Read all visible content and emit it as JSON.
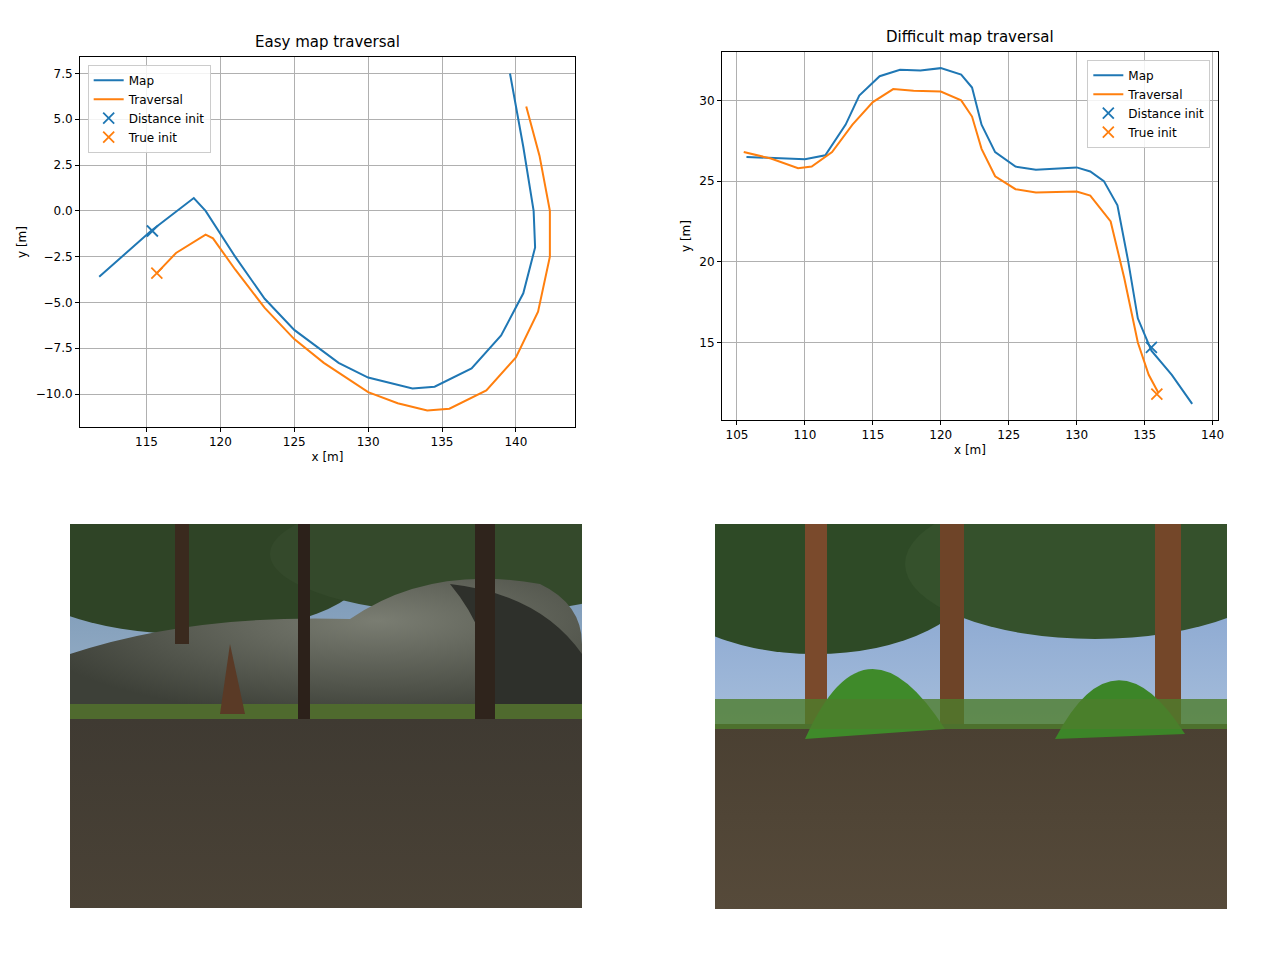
{
  "chart_data": [
    {
      "type": "line",
      "title": "Easy map traversal",
      "x_label": "x [m]",
      "y_label": "y [m]",
      "series": [
        {
          "name": "Map",
          "color": "#1f77b4",
          "line_style": "solid",
          "x": [
            111.8,
            115.3,
            118.2,
            119.0,
            121.0,
            123.0,
            125.0,
            128.0,
            130.0,
            133.0,
            134.5,
            137.0,
            139.0,
            140.5,
            141.3,
            141.2,
            140.5,
            139.6
          ],
          "values": [
            -3.6,
            -1.1,
            0.7,
            0.0,
            -2.5,
            -4.8,
            -6.5,
            -8.3,
            -9.1,
            -9.7,
            -9.6,
            -8.6,
            -6.8,
            -4.5,
            -2.0,
            0.0,
            3.5,
            7.5
          ]
        },
        {
          "name": "Traversal",
          "color": "#ff7f0e",
          "line_style": "solid",
          "x": [
            115.7,
            117.0,
            119.0,
            119.5,
            121.0,
            123.0,
            125.0,
            127.0,
            130.0,
            132.0,
            134.0,
            135.5,
            138.0,
            140.0,
            141.5,
            142.3,
            142.3,
            141.6,
            140.7
          ],
          "values": [
            -3.4,
            -2.3,
            -1.3,
            -1.5,
            -3.2,
            -5.3,
            -7.0,
            -8.3,
            -9.9,
            -10.5,
            -10.9,
            -10.8,
            -9.8,
            -8.0,
            -5.5,
            -2.5,
            0.0,
            3.0,
            5.7
          ]
        },
        {
          "name": "Distance init",
          "color": "#1f77b4",
          "type": "scatter",
          "marker": "x",
          "x": [
            115.4
          ],
          "values": [
            -1.1
          ]
        },
        {
          "name": "True init",
          "color": "#ff7f0e",
          "type": "scatter",
          "marker": "x",
          "x": [
            115.7
          ],
          "values": [
            -3.4
          ]
        }
      ],
      "xlim": [
        110.5,
        144.0
      ],
      "ylim": [
        -11.8,
        8.4
      ],
      "xticks": [
        115,
        120,
        125,
        130,
        135,
        140
      ],
      "yticks": [
        {
          "value": -10,
          "label": "−10.0"
        },
        {
          "value": -7.5,
          "label": "−7.5"
        },
        {
          "value": -5,
          "label": "−5.0"
        },
        {
          "value": -2.5,
          "label": "−2.5"
        },
        {
          "value": 0,
          "label": "0.0"
        },
        {
          "value": 2.5,
          "label": "2.5"
        },
        {
          "value": 5,
          "label": "5.0"
        },
        {
          "value": 7.5,
          "label": "7.5"
        }
      ],
      "grid": true,
      "legend": "upper left"
    },
    {
      "type": "line",
      "title": "Difficult map traversal",
      "x_label": "x [m]",
      "y_label": "y [m]",
      "series": [
        {
          "name": "Map",
          "color": "#1f77b4",
          "line_style": "solid",
          "x": [
            105.7,
            108.0,
            110.0,
            111.5,
            113.0,
            114.0,
            115.5,
            117.0,
            118.5,
            120.0,
            121.5,
            122.3,
            123.0,
            124.0,
            125.5,
            127.0,
            130.0,
            131.0,
            132.0,
            133.0,
            133.8,
            134.5,
            135.5,
            137.0,
            138.5
          ],
          "values": [
            26.5,
            26.4,
            26.35,
            26.6,
            28.5,
            30.3,
            31.5,
            31.9,
            31.85,
            32.0,
            31.6,
            30.8,
            28.5,
            26.8,
            25.9,
            25.7,
            25.85,
            25.6,
            25.0,
            23.5,
            20.0,
            16.5,
            14.5,
            13.0,
            11.2
          ]
        },
        {
          "name": "Traversal",
          "color": "#ff7f0e",
          "line_style": "solid",
          "x": [
            105.5,
            107.5,
            109.5,
            110.5,
            112.0,
            113.5,
            115.0,
            116.5,
            118.0,
            120.0,
            121.5,
            122.3,
            123.0,
            124.0,
            125.5,
            127.0,
            130.0,
            131.0,
            132.5,
            133.5,
            134.5,
            135.3,
            136.0
          ],
          "values": [
            26.8,
            26.4,
            25.8,
            25.9,
            26.8,
            28.5,
            29.9,
            30.7,
            30.6,
            30.55,
            30.0,
            29.0,
            27.0,
            25.3,
            24.5,
            24.3,
            24.35,
            24.1,
            22.5,
            19.0,
            15.0,
            13.0,
            11.9
          ]
        },
        {
          "name": "Distance init",
          "color": "#1f77b4",
          "type": "scatter",
          "marker": "x",
          "x": [
            135.5
          ],
          "values": [
            14.7
          ]
        },
        {
          "name": "True init",
          "color": "#ff7f0e",
          "type": "scatter",
          "marker": "x",
          "x": [
            135.9
          ],
          "values": [
            11.8
          ]
        }
      ],
      "xlim": [
        103.9,
        140.4
      ],
      "ylim": [
        10.2,
        33.0
      ],
      "xticks": [
        105,
        110,
        115,
        120,
        125,
        130,
        135,
        140
      ],
      "yticks": [
        15,
        20,
        25,
        30
      ],
      "grid": true,
      "legend": "upper right"
    }
  ]
}
